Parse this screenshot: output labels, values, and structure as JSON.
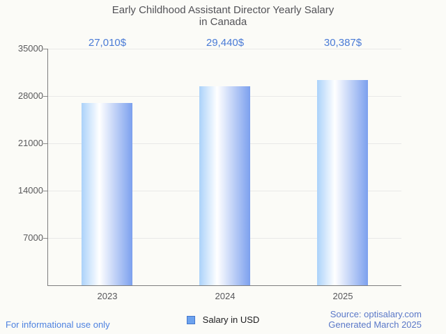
{
  "title": {
    "line1": "Early Childhood Assistant Director Yearly Salary",
    "line2": "in Canada"
  },
  "chart_data": {
    "type": "bar",
    "title": "Early Childhood Assistant Director Yearly Salary in Canada",
    "categories": [
      "2023",
      "2024",
      "2025"
    ],
    "values": [
      27010,
      29440,
      30387
    ],
    "value_labels": [
      "27,010$",
      "29,440$",
      "30,387$"
    ],
    "xlabel": "",
    "ylabel": "",
    "ylim": [
      0,
      35000
    ],
    "yticks": [
      7000,
      14000,
      21000,
      28000,
      35000
    ],
    "grid": true,
    "legend": {
      "label": "Salary in USD",
      "position": "bottom"
    }
  },
  "footer": {
    "disclaimer": "For informational use only",
    "source": "Source: optisalary.com",
    "generated": "Generated March 2025"
  },
  "colors": {
    "background": "#fbfbf7",
    "title_text": "#525257",
    "axis": "#7e7e7e",
    "gridline": "#e9e9e8",
    "tick_label": "#5a5a5c",
    "value_label": "#4a7bd6",
    "bar_gradient_left": "#abd2fa",
    "bar_gradient_mid": "#ffffff",
    "bar_gradient_right": "#7ca0ee",
    "legend_swatch_fill": "#6ca2ee",
    "legend_swatch_border": "#4477cc",
    "disclaimer_blue": "#4e82e0",
    "source_blue": "#5a78c8"
  }
}
